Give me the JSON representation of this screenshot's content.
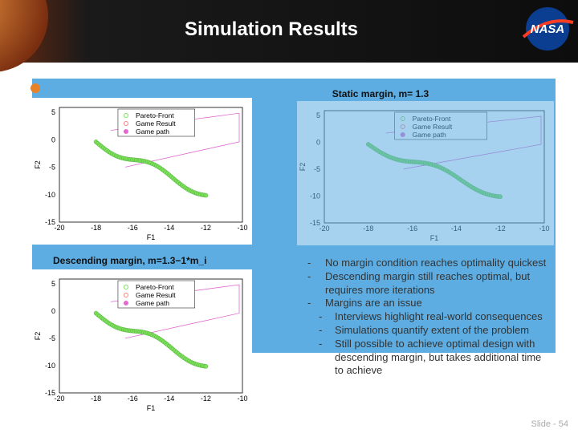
{
  "header": {
    "title": "Simulation Results"
  },
  "panels": [
    {
      "caption": "Static margin, m= 1.3"
    },
    {
      "caption": "Descending margin, m=1.3−1*m_i"
    }
  ],
  "plots": [
    {
      "legend": [
        "Pareto-Front",
        "Game Result",
        "Game path"
      ],
      "x_label": "F1",
      "y_label": "F2",
      "xticks": [
        "-20",
        "-18",
        "-16",
        "-14",
        "-12",
        "-10"
      ],
      "yticks": [
        "5",
        "0",
        "-5",
        "-10",
        "-15"
      ]
    },
    {
      "legend": [
        "Pareto-Front",
        "Game Result",
        "Game path"
      ],
      "x_label": "F1",
      "y_label": "F2",
      "xticks": [
        "-20",
        "-18",
        "-16",
        "-14",
        "-12",
        "-10"
      ],
      "yticks": [
        "5",
        "0",
        "-5",
        "-10",
        "-15"
      ]
    },
    {
      "legend": [
        "Pareto-Front",
        "Game Result",
        "Game path"
      ],
      "x_label": "F1",
      "y_label": "F2",
      "xticks": [
        "-20",
        "-18",
        "-16",
        "-14",
        "-12",
        "-10"
      ],
      "yticks": [
        "5",
        "0",
        "-5",
        "-10",
        "-15"
      ]
    }
  ],
  "bullets": [
    {
      "text": "No margin condition reaches optimality quickest",
      "sub": []
    },
    {
      "text": "Descending margin still reaches optimal, but requires more iterations",
      "sub": []
    },
    {
      "text": "Margins are an issue",
      "sub": [
        "Interviews highlight real-world consequences",
        "Simulations quantify extent of the problem",
        "Still possible to achieve optimal design with descending margin, but takes additional time to achieve"
      ]
    }
  ],
  "footer": "Slide - 54"
}
